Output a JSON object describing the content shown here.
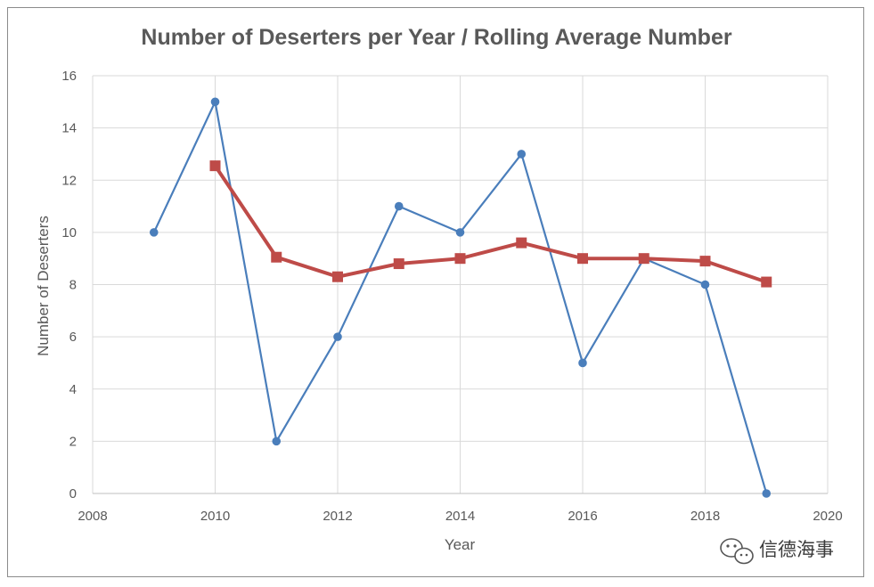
{
  "chart_data": {
    "type": "line",
    "title": "Number of Deserters per Year / Rolling Average Number",
    "xlabel": "Year",
    "ylabel": "Number of Deserters",
    "xlim": [
      2008,
      2020
    ],
    "ylim": [
      0,
      16
    ],
    "xticks": [
      2008,
      2010,
      2012,
      2014,
      2016,
      2018,
      2020
    ],
    "yticks": [
      0,
      2,
      4,
      6,
      8,
      10,
      12,
      14,
      16
    ],
    "grid": true,
    "series": [
      {
        "color": "#4a7ebb",
        "marker": "circle",
        "x": [
          2009,
          2010,
          2011,
          2012,
          2013,
          2014,
          2015,
          2016,
          2017,
          2018,
          2019
        ],
        "y": [
          10,
          15,
          2,
          6,
          11,
          10,
          13,
          5,
          9,
          8,
          0
        ]
      },
      {
        "color": "#be4b48",
        "marker": "square",
        "x": [
          2010,
          2011,
          2012,
          2013,
          2014,
          2015,
          2016,
          2017,
          2018,
          2019
        ],
        "y": [
          12.55,
          9.05,
          8.3,
          8.8,
          9.0,
          9.6,
          9.0,
          9.0,
          8.9,
          8.1
        ]
      }
    ]
  },
  "watermark": {
    "icon": "wechat-icon",
    "text": "信德海事"
  }
}
